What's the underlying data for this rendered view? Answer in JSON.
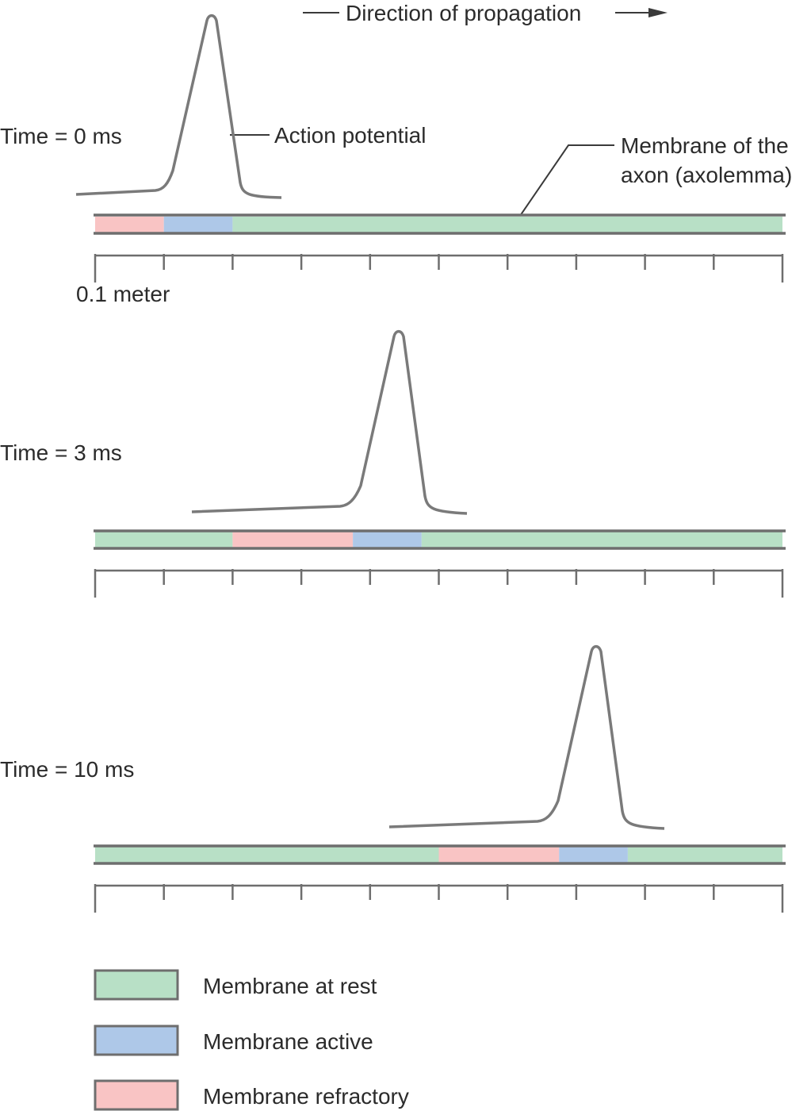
{
  "header": {
    "direction_label": "Direction of propagation"
  },
  "annotations": {
    "action_potential": "Action potential",
    "membrane_line1": "Membrane of the",
    "membrane_line2": "axon (axolemma)",
    "scale_label": "0.1 meter"
  },
  "panels": [
    {
      "time_label": "Time = 0 ms",
      "segments": [
        {
          "state": "refractory",
          "from": 0,
          "to": 1
        },
        {
          "state": "active",
          "from": 1,
          "to": 2
        },
        {
          "state": "rest",
          "from": 2,
          "to": 10
        }
      ]
    },
    {
      "time_label": "Time = 3 ms",
      "segments": [
        {
          "state": "rest",
          "from": 0,
          "to": 2
        },
        {
          "state": "refractory",
          "from": 2,
          "to": 3.75
        },
        {
          "state": "active",
          "from": 3.75,
          "to": 4.75
        },
        {
          "state": "rest",
          "from": 4.75,
          "to": 10
        }
      ]
    },
    {
      "time_label": "Time = 10 ms",
      "segments": [
        {
          "state": "rest",
          "from": 0,
          "to": 5
        },
        {
          "state": "refractory",
          "from": 5,
          "to": 6.75
        },
        {
          "state": "active",
          "from": 6.75,
          "to": 7.75
        },
        {
          "state": "rest",
          "from": 7.75,
          "to": 10
        }
      ]
    }
  ],
  "scale": {
    "divisions": 10
  },
  "legend": [
    {
      "state": "rest",
      "label": "Membrane at rest"
    },
    {
      "state": "active",
      "label": "Membrane active"
    },
    {
      "state": "refractory",
      "label": "Membrane refractory"
    }
  ],
  "colors": {
    "rest": "#b8e0c6",
    "active": "#aec8e8",
    "refractory": "#f9c4c4"
  }
}
